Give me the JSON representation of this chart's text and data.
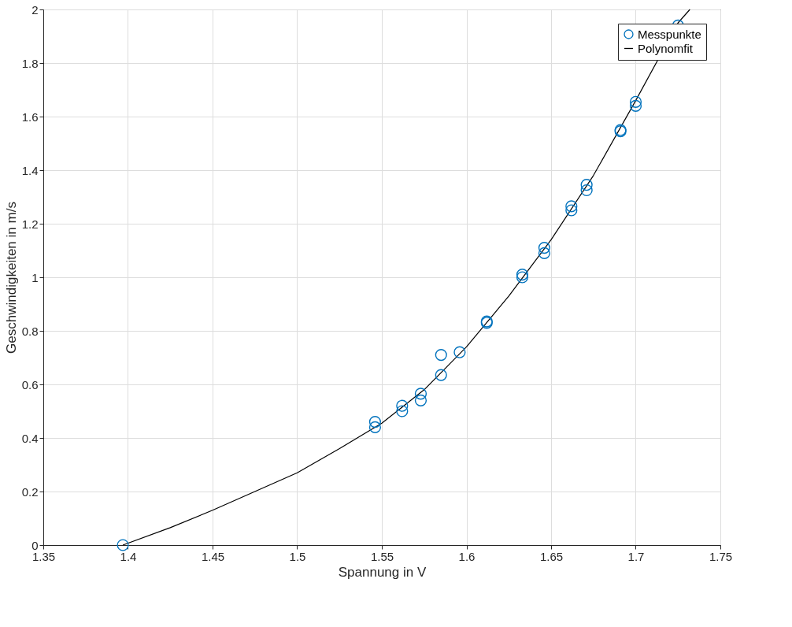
{
  "chart_data": {
    "type": "scatter",
    "xlabel": "Spannung in V",
    "ylabel": "Geschwindigkeiten in m/s",
    "xlim": [
      1.35,
      1.75
    ],
    "xticks": [
      1.35,
      1.4,
      1.45,
      1.5,
      1.55,
      1.6,
      1.65,
      1.7,
      1.75
    ],
    "ylim": [
      0,
      2
    ],
    "yticks": [
      0,
      0.2,
      0.4,
      0.6,
      0.8,
      1,
      1.2,
      1.4,
      1.6,
      1.8,
      2
    ],
    "grid": true,
    "legend": "top right",
    "series": [
      {
        "name": "Messpunkte",
        "marker": "circle",
        "color": "#0072bd",
        "x": [
          1.397,
          1.546,
          1.546,
          1.562,
          1.562,
          1.573,
          1.573,
          1.585,
          1.585,
          1.596,
          1.612,
          1.612,
          1.633,
          1.633,
          1.646,
          1.646,
          1.662,
          1.662,
          1.671,
          1.671,
          1.691,
          1.691,
          1.7,
          1.7,
          1.725
        ],
        "values": [
          0,
          0.46,
          0.44,
          0.52,
          0.5,
          0.565,
          0.54,
          0.71,
          0.635,
          0.72,
          0.835,
          0.83,
          1.01,
          1.0,
          1.11,
          1.09,
          1.265,
          1.25,
          1.345,
          1.325,
          1.55,
          1.545,
          1.655,
          1.64,
          1.94
        ]
      },
      {
        "name": "Polynomfit",
        "type": "line",
        "line_style": "solid",
        "color": "#000000",
        "x": [
          1.397,
          1.425,
          1.45,
          1.475,
          1.5,
          1.525,
          1.55,
          1.575,
          1.6,
          1.625,
          1.65,
          1.675,
          1.7,
          1.725,
          1.732
        ],
        "values": [
          0,
          0.065,
          0.13,
          0.2,
          0.27,
          0.36,
          0.455,
          0.58,
          0.74,
          0.93,
          1.14,
          1.38,
          1.66,
          1.95,
          2.0
        ]
      }
    ]
  }
}
